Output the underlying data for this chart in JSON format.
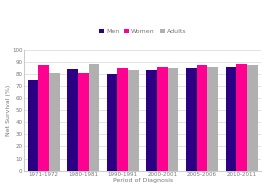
{
  "categories": [
    "1971-1972",
    "1980-1981",
    "1990-1991",
    "2000-2001",
    "2005-2006",
    "2010-2011"
  ],
  "men": [
    75,
    84,
    80,
    83,
    85,
    86
  ],
  "women": [
    87,
    81,
    85,
    86,
    87,
    88
  ],
  "adults": [
    81,
    88,
    83,
    85,
    86,
    87
  ],
  "men_color": "#2b0082",
  "women_color": "#ff0090",
  "adults_color": "#b0b0b0",
  "ylabel": "Net Survival (%)",
  "xlabel": "Period of Diagnosis",
  "ylim": [
    0,
    100
  ],
  "yticks": [
    0,
    10,
    20,
    30,
    40,
    50,
    60,
    70,
    80,
    90,
    100
  ],
  "legend_labels": [
    "Men",
    "Women",
    "Adults"
  ],
  "bar_width": 0.27,
  "background_color": "#ffffff",
  "grid_color": "#d8d8d8"
}
